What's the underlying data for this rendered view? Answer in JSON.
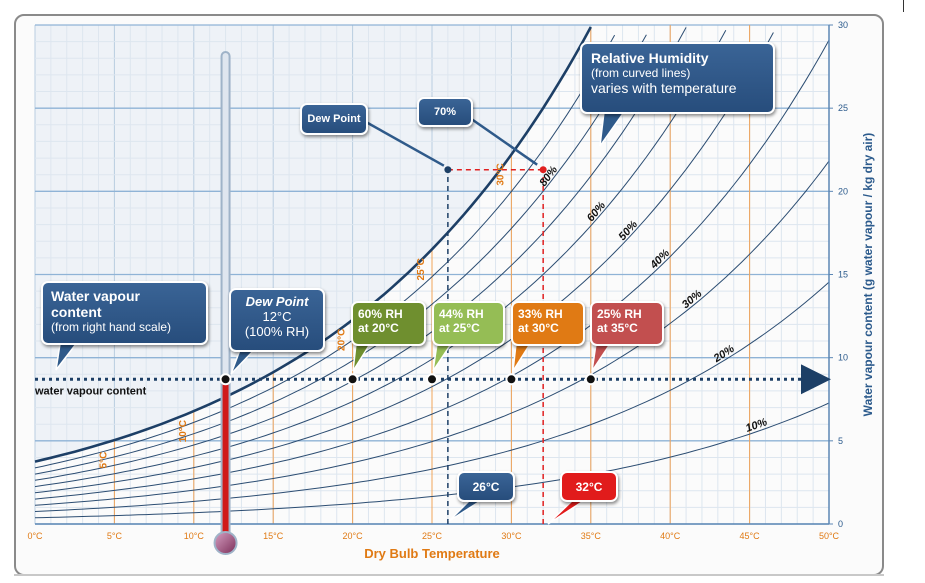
{
  "chart_data": {
    "type": "line",
    "x_axis": {
      "label": "Dry Bulb Temperature",
      "range": [
        0,
        50
      ],
      "ticks": [
        "0°C",
        "5°C",
        "10°C",
        "15°C",
        "20°C",
        "25°C",
        "30°C",
        "35°C",
        "40°C",
        "45°C",
        "50°C"
      ]
    },
    "y_axis": {
      "label": "Water vapour content (g water vapour / kg dry air)",
      "position": "right",
      "range": [
        0,
        30
      ],
      "ticks": [
        "0",
        "5",
        "10",
        "15",
        "20",
        "25",
        "30"
      ]
    },
    "grid": true,
    "saturation_labels": [
      {
        "text": "5°C",
        "t": 5
      },
      {
        "text": "10°C",
        "t": 10
      },
      {
        "text": "20°C",
        "t": 20
      },
      {
        "text": "25°C",
        "t": 25
      },
      {
        "text": "30°C",
        "t": 30
      }
    ],
    "rh_curves": [
      100,
      90,
      80,
      70,
      60,
      50,
      40,
      30,
      20,
      10
    ],
    "rh_labels": [
      {
        "text": "80%",
        "rh": 80,
        "t": 32.5
      },
      {
        "text": "60%",
        "rh": 60,
        "t": 35.5
      },
      {
        "text": "50%",
        "rh": 50,
        "t": 37.5
      },
      {
        "text": "40%",
        "rh": 40,
        "t": 39.5
      },
      {
        "text": "30%",
        "rh": 30,
        "t": 41.5
      },
      {
        "text": "20%",
        "rh": 20,
        "t": 43.5
      },
      {
        "text": "10%",
        "rh": 10,
        "t": 45.5
      }
    ],
    "water_vapour_line": {
      "label": "water vapour content",
      "y": 8.7
    },
    "points": [
      {
        "t": 12,
        "y": 8.7
      },
      {
        "t": 20,
        "y": 8.7
      },
      {
        "t": 25,
        "y": 8.7
      },
      {
        "t": 30,
        "y": 8.7
      },
      {
        "t": 35,
        "y": 8.7
      }
    ],
    "example": {
      "dew_point_t": 26,
      "dry_bulb_t": 32,
      "y": 21.3
    }
  },
  "callouts": {
    "water_vapour": {
      "title": "Water vapour",
      "title2": "content",
      "sub": "(from right hand scale)"
    },
    "dew_point": {
      "l1": "Dew Point",
      "l2": "12°C",
      "l3": "(100% RH)"
    },
    "rh60": {
      "l1": "60% RH",
      "l2": "at 20°C",
      "color": "#6f8f2f"
    },
    "rh44": {
      "l1": "44% RH",
      "l2": "at 25°C",
      "color": "#95bd55"
    },
    "rh33": {
      "l1": "33% RH",
      "l2": "at 30°C",
      "color": "#e07a14"
    },
    "rh25": {
      "l1": "25% RH",
      "l2": "at 35°C",
      "color": "#c24f4f"
    },
    "relative_humidity": {
      "title": "Relative Humidity",
      "sub": "(from curved lines)",
      "sub2": "varies with temperature"
    },
    "dew_point_small": {
      "text": "Dew Point"
    },
    "seventy": {
      "text": "70%"
    },
    "t26": {
      "text": "26°C"
    },
    "t32": {
      "text": "32°C"
    }
  },
  "colors": {
    "accent_blue": "#2b5a8c",
    "orange": "#e07a14",
    "red": "#e02020"
  }
}
